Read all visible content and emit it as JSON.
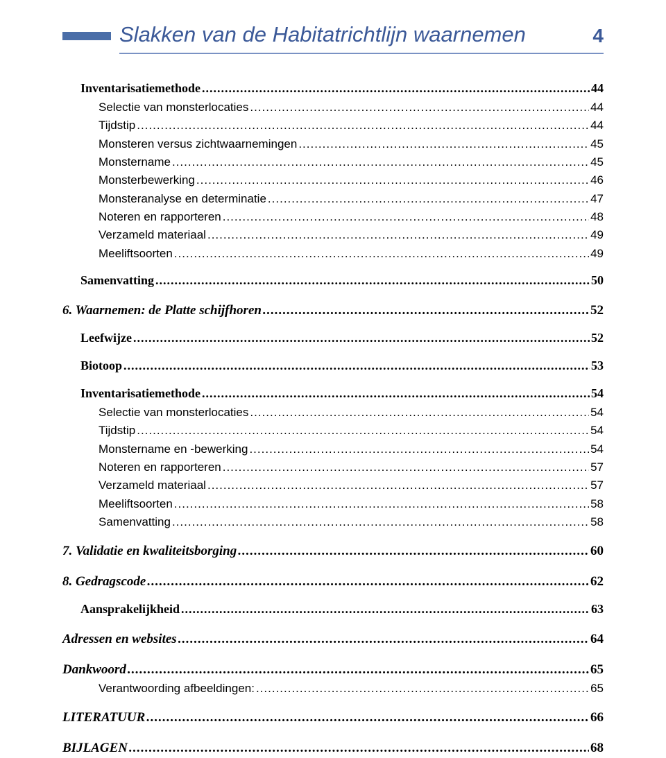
{
  "header": {
    "title": "Slakken van de Habitatrichtlijn waarnemen",
    "page_number": "4",
    "title_color": "#3b5998",
    "bar_color": "#4a6ea8",
    "underline_color": "#7a92c4"
  },
  "toc": [
    {
      "level": 2,
      "label": "Inventarisatiemethode",
      "page": "44"
    },
    {
      "level": 3,
      "label": "Selectie van monsterlocaties",
      "page": "44"
    },
    {
      "level": 3,
      "label": "Tijdstip",
      "page": "44"
    },
    {
      "level": 3,
      "label": "Monsteren versus zichtwaarnemingen",
      "page": "45"
    },
    {
      "level": 3,
      "label": "Monstername",
      "page": "45"
    },
    {
      "level": 3,
      "label": "Monsterbewerking",
      "page": "46"
    },
    {
      "level": 3,
      "label": "Monsteranalyse en determinatie",
      "page": "47"
    },
    {
      "level": 3,
      "label": "Noteren en rapporteren",
      "page": "48"
    },
    {
      "level": 3,
      "label": "Verzameld materiaal",
      "page": "49"
    },
    {
      "level": 3,
      "label": "Meeliftsoorten",
      "page": "49"
    },
    {
      "level": 2,
      "label": "Samenvatting",
      "page": "50"
    },
    {
      "level": 1,
      "label": "6. Waarnemen: de Platte schijfhoren",
      "page": "52"
    },
    {
      "level": 2,
      "label": "Leefwijze",
      "page": "52"
    },
    {
      "level": 2,
      "label": "Biotoop",
      "page": "53"
    },
    {
      "level": 2,
      "label": "Inventarisatiemethode",
      "page": "54"
    },
    {
      "level": 3,
      "label": "Selectie van monsterlocaties",
      "page": "54"
    },
    {
      "level": 3,
      "label": "Tijdstip",
      "page": "54"
    },
    {
      "level": 3,
      "label": "Monstername en -bewerking",
      "page": "54"
    },
    {
      "level": 3,
      "label": "Noteren en rapporteren",
      "page": "57"
    },
    {
      "level": 3,
      "label": "Verzameld materiaal",
      "page": "57"
    },
    {
      "level": 3,
      "label": "Meeliftsoorten",
      "page": "58"
    },
    {
      "level": 3,
      "label": "Samenvatting",
      "page": "58"
    },
    {
      "level": 1,
      "label": "7. Validatie en kwaliteitsborging",
      "page": "60"
    },
    {
      "level": 1,
      "label": "8. Gedragscode",
      "page": "62"
    },
    {
      "level": 2,
      "label": "Aansprakelijkheid",
      "page": "63"
    },
    {
      "level": 1,
      "label": "Adressen en websites",
      "page": "64"
    },
    {
      "level": 1,
      "label": "Dankwoord",
      "page": "65"
    },
    {
      "level": 3,
      "label": "Verantwoording afbeeldingen:",
      "page": "65"
    },
    {
      "level": 1,
      "label": "LITERATUUR",
      "page": "66"
    },
    {
      "level": 1,
      "label": "BIJLAGEN",
      "page": "68"
    }
  ]
}
